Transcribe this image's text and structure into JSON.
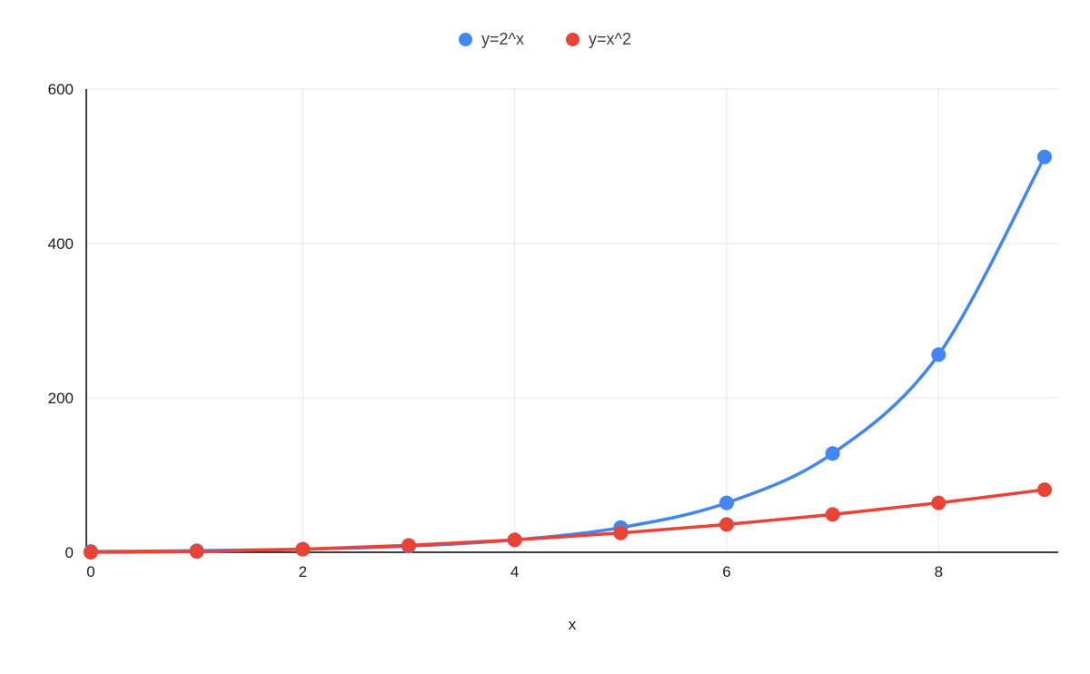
{
  "chart_data": {
    "type": "line",
    "x": [
      0,
      1,
      2,
      3,
      4,
      5,
      6,
      7,
      8,
      9
    ],
    "series": [
      {
        "name": "y=2^x",
        "color": "#4285F4",
        "values": [
          1,
          2,
          4,
          8,
          16,
          32,
          64,
          128,
          256,
          512
        ]
      },
      {
        "name": "y=x^2",
        "color": "#EA4335",
        "values": [
          0,
          1,
          4,
          9,
          16,
          25,
          36,
          49,
          64,
          81
        ]
      }
    ],
    "title": "",
    "xlabel": "x",
    "ylabel": "",
    "x_ticks": [
      0,
      2,
      4,
      6,
      8
    ],
    "y_ticks": [
      0,
      200,
      400,
      600
    ],
    "xlim": [
      0,
      9
    ],
    "ylim": [
      0,
      600
    ],
    "grid": true,
    "smooth": true,
    "marker": "circle",
    "legend_position": "top",
    "colors": {
      "background": "#ffffff",
      "grid": "#e6e6e6",
      "axis": "#000000",
      "tick_text": "#1a1a1a"
    }
  }
}
